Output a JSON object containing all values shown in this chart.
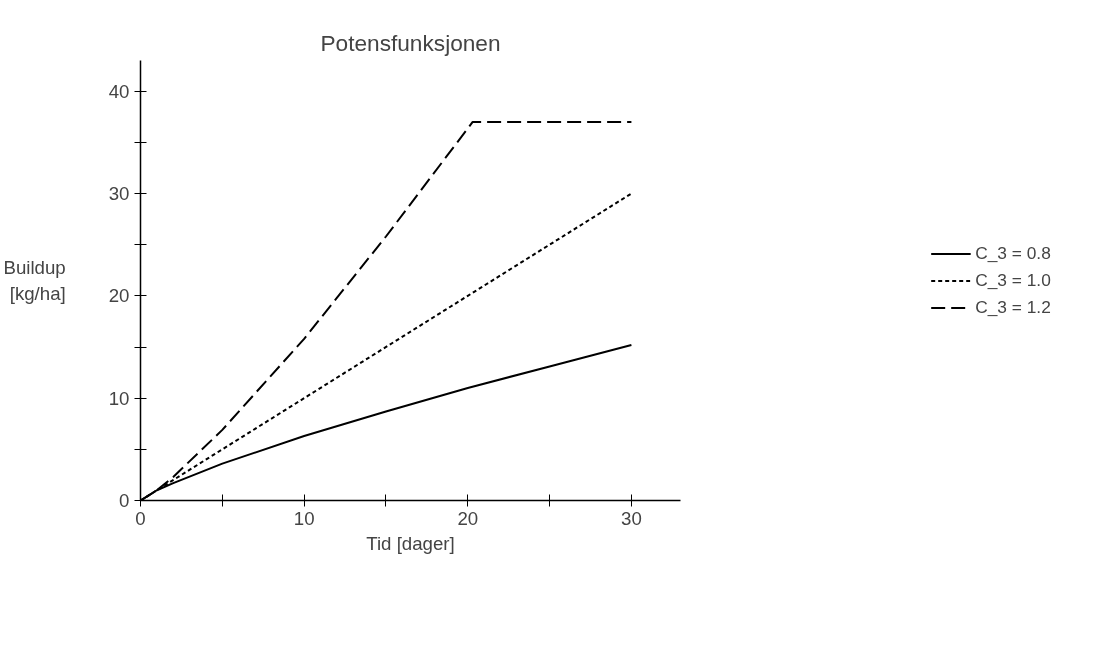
{
  "chart_data": {
    "type": "line",
    "title": "Potensfunksjonen",
    "xlabel": "Tid [dager]",
    "ylabel": "Buildup [kg/ha]",
    "series": [
      {
        "name": "C_3 = 0.8",
        "color": "#000000",
        "line_style": "solid",
        "x": [
          0,
          1,
          2,
          5,
          10,
          15,
          20,
          25,
          30
        ],
        "values": [
          0,
          1,
          1.7,
          3.6,
          6.3,
          8.7,
          11,
          13.1,
          15.2
        ]
      },
      {
        "name": "C_3 = 1.0",
        "color": "#000000",
        "line_style": "dotted",
        "x": [
          0,
          10,
          20,
          30
        ],
        "values": [
          0,
          10,
          20,
          30
        ]
      },
      {
        "name": "C_3 = 1.2",
        "color": "#000000",
        "line_style": "dashed",
        "x": [
          0,
          1,
          2,
          5,
          10,
          15,
          20.3,
          25,
          30
        ],
        "values": [
          0,
          1,
          2.3,
          6.9,
          15.8,
          25.8,
          37,
          37,
          37
        ]
      }
    ],
    "xlim": [
      0,
      33
    ],
    "ylim": [
      0,
      43
    ],
    "xticks": [
      0,
      {
        "value": 5,
        "label": null
      },
      10,
      {
        "value": 15,
        "label": null
      },
      20,
      {
        "value": 25,
        "label": null
      },
      30
    ],
    "yticks": [
      0,
      {
        "value": 5,
        "label": null
      },
      10,
      {
        "value": 15,
        "label": null
      },
      20,
      {
        "value": 25,
        "label": null
      },
      30,
      {
        "value": 35,
        "label": null
      },
      40
    ],
    "grid": false,
    "legend": "right",
    "marker": "none"
  }
}
